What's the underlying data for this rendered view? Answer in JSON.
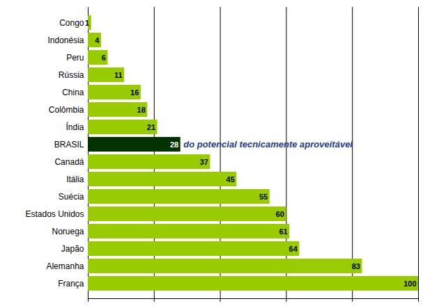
{
  "chart_data": {
    "type": "bar",
    "orientation": "horizontal",
    "categories": [
      "Congo",
      "Indonésia",
      "Peru",
      "Rússia",
      "China",
      "Colômbia",
      "Índia",
      "BRASIL",
      "Canadá",
      "Itália",
      "Suécia",
      "Estados Unidos",
      "Noruega",
      "Japão",
      "Alemanha",
      "França"
    ],
    "values": [
      1,
      4,
      6,
      11,
      16,
      18,
      21,
      28,
      37,
      45,
      55,
      60,
      61,
      64,
      83,
      100
    ],
    "colors": [
      "#99cc00",
      "#99cc00",
      "#99cc00",
      "#99cc00",
      "#99cc00",
      "#99cc00",
      "#99cc00",
      "#003300",
      "#99cc00",
      "#99cc00",
      "#99cc00",
      "#99cc00",
      "#99cc00",
      "#99cc00",
      "#99cc00",
      "#99cc00"
    ],
    "xlim": [
      0,
      100
    ],
    "xticks": [
      0,
      20,
      40,
      60,
      80,
      100
    ],
    "grid": true,
    "tick_labels": "y",
    "data_labels": true,
    "annotations": [
      {
        "text": "do potencial tecnicamente aproveitável",
        "category": "BRASIL"
      }
    ]
  }
}
